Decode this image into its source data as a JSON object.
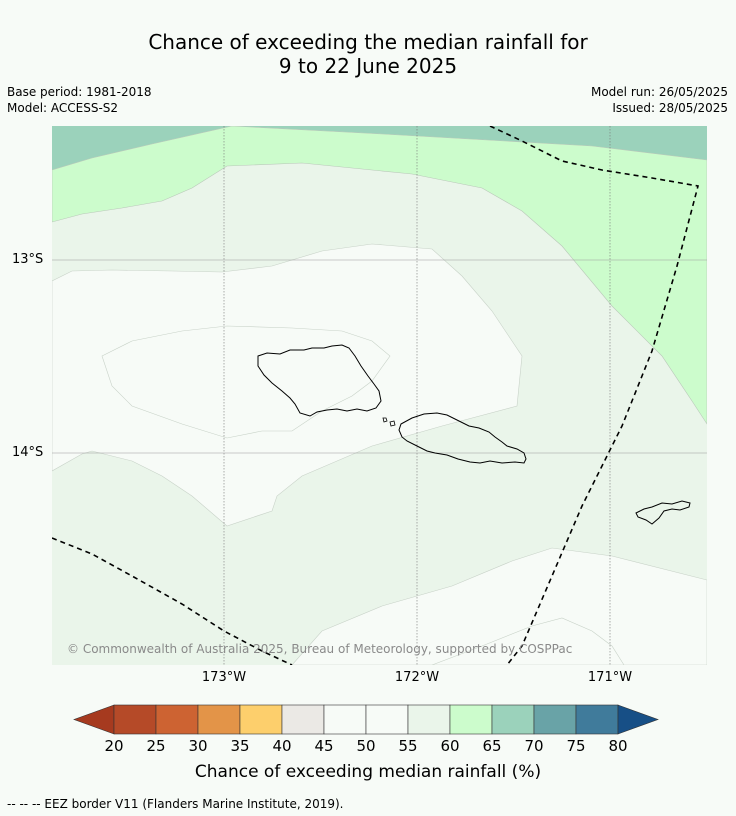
{
  "title_line1": "Chance of exceeding the median rainfall for",
  "title_line2": "9 to 22 June 2025",
  "meta": {
    "base_period": "Base period: 1981-2018",
    "model": "Model: ACCESS-S2",
    "model_run": "Model run: 26/05/2025",
    "issued": "Issued: 28/05/2025"
  },
  "axes": {
    "lat_labels": [
      "13°S",
      "14°S"
    ],
    "lon_labels": [
      "173°W",
      "172°W",
      "171°W"
    ]
  },
  "copyright": "© Commonwealth of Australia 2025, Bureau of Meteorology, supported by COSPPac",
  "colorbar": {
    "ticks": [
      "20",
      "25",
      "30",
      "35",
      "40",
      "45",
      "50",
      "55",
      "60",
      "65",
      "70",
      "75",
      "80"
    ],
    "colors": [
      "#a63a1f",
      "#b54a28",
      "#cd6332",
      "#e39448",
      "#fdcf6c",
      "#ebe9e5",
      "#f7fbf7",
      "#f7fbf7",
      "#eaf5ea",
      "#ccfccc",
      "#9bd2bb",
      "#69a3a7",
      "#407b9b",
      "#174f86"
    ],
    "label": "Chance of exceeding median rainfall (%)"
  },
  "footnote": "--  --  -- EEZ border V11 (Flanders Marine Institute, 2019)."
}
